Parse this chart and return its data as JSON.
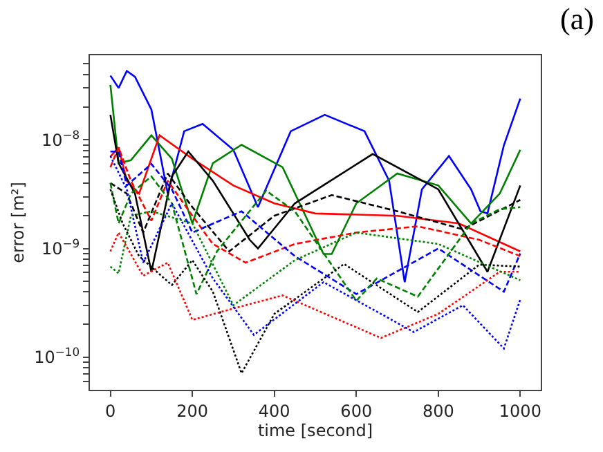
{
  "chart_data": {
    "type": "line",
    "xlabel": "time [second]",
    "ylabel": "error [m²]",
    "annotations": [
      "(a)"
    ],
    "log": "y",
    "marker": "none",
    "xlim": [
      -50,
      1050
    ],
    "xticks": [
      0,
      200,
      400,
      600,
      800,
      1000
    ],
    "ylim": [
      5e-11,
      6e-08
    ],
    "yticks": [
      {
        "value": 6e-11,
        "label": null
      },
      {
        "value": 7e-11,
        "label": null
      },
      {
        "value": 8e-11,
        "label": null
      },
      {
        "value": 9e-11,
        "label": null
      },
      {
        "value": 1e-10,
        "label": "10$^{−10}$"
      },
      {
        "value": 2e-10,
        "label": null
      },
      {
        "value": 3e-10,
        "label": null
      },
      {
        "value": 4e-10,
        "label": null
      },
      {
        "value": 5e-10,
        "label": null
      },
      {
        "value": 6e-10,
        "label": null
      },
      {
        "value": 7e-10,
        "label": null
      },
      {
        "value": 8e-10,
        "label": null
      },
      {
        "value": 9e-10,
        "label": null
      },
      {
        "value": 1e-09,
        "label": "10$^{−9}$"
      },
      {
        "value": 2e-09,
        "label": null
      },
      {
        "value": 3e-09,
        "label": null
      },
      {
        "value": 4e-09,
        "label": null
      },
      {
        "value": 5e-09,
        "label": null
      },
      {
        "value": 6e-09,
        "label": null
      },
      {
        "value": 7e-09,
        "label": null
      },
      {
        "value": 8e-09,
        "label": null
      },
      {
        "value": 9e-09,
        "label": null
      },
      {
        "value": 1e-08,
        "label": "10$^{−8}$"
      },
      {
        "value": 2e-08,
        "label": null
      },
      {
        "value": 3e-08,
        "label": null
      },
      {
        "value": 4e-08,
        "label": null
      },
      {
        "value": 5e-08,
        "label": null
      }
    ],
    "series": [
      {
        "color": "#0000ff",
        "line_style": "solid",
        "x": [
          0,
          20,
          40,
          60,
          100,
          140,
          180,
          225,
          300,
          360,
          440,
          523,
          620,
          680,
          718,
          760,
          826,
          880,
          903,
          920,
          960,
          1000
        ],
        "values": [
          3.9e-08,
          3e-08,
          4.3e-08,
          3.8e-08,
          1.9e-08,
          3.2e-09,
          1.2e-08,
          1.4e-08,
          8.1e-09,
          2.4e-09,
          1.2e-08,
          1.7e-08,
          1.2e-08,
          4.2e-09,
          4.9e-10,
          3.5e-09,
          7.1e-09,
          3.5e-09,
          2.2e-09,
          2.1e-09,
          8.9e-09,
          2.4e-08
        ]
      },
      {
        "color": "#008000",
        "line_style": "solid",
        "x": [
          0,
          20,
          50,
          100,
          150,
          200,
          250,
          320,
          420,
          520,
          540,
          600,
          700,
          800,
          880,
          950,
          1000
        ],
        "values": [
          3.2e-08,
          6.1e-09,
          6.5e-09,
          1.1e-08,
          6.7e-09,
          1.7e-09,
          6.1e-09,
          9e-09,
          5.6e-09,
          8.9e-10,
          8.9e-10,
          2.6e-09,
          4.9e-09,
          3.8e-09,
          1.7e-09,
          3.2e-09,
          8.1e-09
        ]
      },
      {
        "color": "#ff0000",
        "line_style": "solid",
        "x": [
          0,
          20,
          40,
          70,
          120,
          200,
          300,
          400,
          500,
          700,
          850,
          1000
        ],
        "values": [
          7e-09,
          8.5e-09,
          4.2e-09,
          3.2e-09,
          1.1e-08,
          6.7e-09,
          3.8e-09,
          2.6e-09,
          2.1e-09,
          2e-09,
          1.7e-09,
          9.4e-10
        ]
      },
      {
        "color": "#000000",
        "line_style": "solid",
        "x": [
          0,
          20,
          60,
          100,
          150,
          190,
          250,
          340,
          360,
          450,
          640,
          800,
          920,
          1000
        ],
        "values": [
          1.7e-08,
          6.1e-09,
          3.2e-09,
          6.1e-10,
          4.6e-09,
          7.8e-09,
          4.2e-09,
          1.2e-09,
          1e-09,
          2.6e-09,
          7.4e-09,
          3.5e-09,
          6.1e-10,
          3.8e-09
        ]
      },
      {
        "color": "#000000",
        "line_style": "dashed",
        "x": [
          0,
          40,
          80,
          140,
          200,
          290,
          400,
          540,
          700,
          860,
          1000
        ],
        "values": [
          4e-09,
          3.2e-09,
          1.4e-09,
          4.9e-09,
          2.4e-09,
          9.4e-10,
          2e-09,
          3.1e-09,
          2.2e-09,
          1.5e-09,
          2.8e-09
        ]
      },
      {
        "color": "#ff0000",
        "line_style": "dashed",
        "x": [
          0,
          20,
          50,
          100,
          140,
          200,
          250,
          330,
          450,
          600,
          750,
          900,
          1000
        ],
        "values": [
          5.6e-09,
          8.5e-09,
          4.2e-09,
          1.8e-09,
          4.2e-09,
          2e-09,
          1.1e-09,
          7.4e-10,
          1.1e-09,
          1.4e-09,
          1.6e-09,
          1.2e-09,
          8.5e-10
        ]
      },
      {
        "color": "#0000ff",
        "line_style": "dashed",
        "x": [
          0,
          20,
          40,
          100,
          150,
          200,
          320,
          450,
          600,
          800,
          960,
          1000
        ],
        "values": [
          7.8e-09,
          7.8e-09,
          3.8e-09,
          6e-09,
          3.5e-09,
          1.4e-09,
          2.2e-09,
          8.5e-10,
          3.8e-10,
          1e-09,
          4e-10,
          9e-10
        ]
      },
      {
        "color": "#008000",
        "line_style": "dashed",
        "x": [
          0,
          20,
          50,
          100,
          150,
          210,
          260,
          380,
          450,
          600,
          650,
          750,
          880,
          950,
          1000
        ],
        "values": [
          4e-09,
          1.7e-09,
          3.2e-09,
          4.6e-09,
          2.6e-09,
          3.8e-10,
          9.4e-10,
          3.4e-09,
          2.2e-09,
          3.3e-10,
          5.3e-10,
          3.6e-10,
          1.7e-09,
          2.3e-09,
          2.4e-09
        ]
      },
      {
        "color": "#000000",
        "line_style": "dotted",
        "x": [
          0,
          30,
          70,
          150,
          200,
          250,
          320,
          400,
          570,
          750,
          900,
          1000
        ],
        "values": [
          3.5e-09,
          1.7e-09,
          8.5e-10,
          4.6e-10,
          7.8e-10,
          4e-10,
          7.1e-11,
          2.5e-10,
          7.2e-10,
          2.6e-10,
          7.1e-10,
          6.8e-10
        ]
      },
      {
        "color": "#ff0000",
        "line_style": "dotted",
        "x": [
          0,
          20,
          80,
          140,
          200,
          300,
          420,
          660,
          800,
          950,
          1000
        ],
        "values": [
          9.4e-10,
          1.4e-09,
          5.6e-10,
          7.4e-10,
          2.2e-10,
          2.8e-10,
          3.7e-10,
          1.5e-10,
          2.5e-10,
          6.1e-10,
          6.1e-10
        ]
      },
      {
        "color": "#0000ff",
        "line_style": "dotted",
        "x": [
          0,
          40,
          80,
          150,
          250,
          350,
          520,
          740,
          860,
          960,
          1000
        ],
        "values": [
          7.1e-09,
          3.5e-09,
          7.4e-10,
          2.6e-09,
          5.3e-10,
          1.6e-10,
          4.9e-10,
          1.7e-10,
          3e-10,
          1.2e-10,
          3.4e-10
        ]
      },
      {
        "color": "#008000",
        "line_style": "dotted",
        "x": [
          0,
          20,
          50,
          100,
          200,
          300,
          450,
          600,
          800,
          1000
        ],
        "values": [
          6.8e-10,
          5.9e-10,
          2e-09,
          2.2e-09,
          1.7e-09,
          3e-10,
          7.8e-10,
          1.4e-09,
          1.1e-09,
          5.1e-10
        ]
      }
    ]
  }
}
